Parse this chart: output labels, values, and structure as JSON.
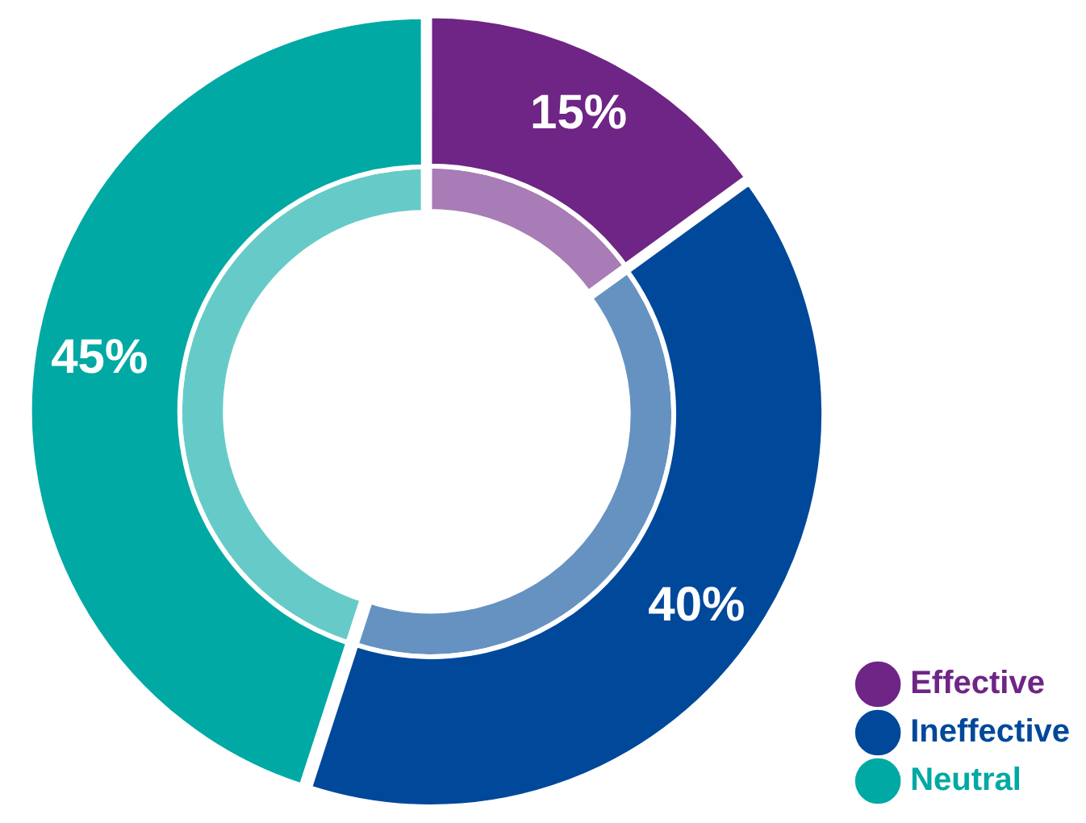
{
  "chart_data": {
    "type": "donut",
    "categories": [
      "Effective",
      "Ineffective",
      "Neutral"
    ],
    "series": [
      {
        "values": [
          15,
          40,
          45
        ],
        "colors": [
          "#a87cb6",
          "#6692c2",
          "#66cbc8"
        ]
      },
      {
        "values": [
          15,
          40,
          45
        ],
        "colors": [
          "#6e2585",
          "#00489a",
          "#00a9a3"
        ],
        "value_labels": [
          "15%",
          "40%",
          "45%"
        ]
      }
    ],
    "legend": "bottom right"
  }
}
